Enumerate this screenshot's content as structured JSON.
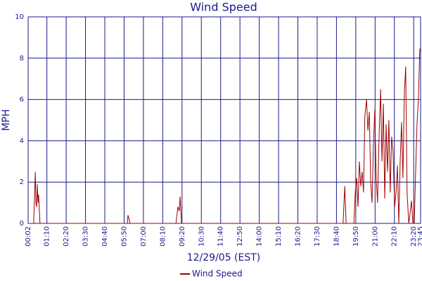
{
  "chart_data": {
    "type": "line",
    "title": "Wind Speed",
    "xlabel": "12/29/05 (EST)",
    "ylabel": "MPH",
    "xlim": [
      2,
      1425
    ],
    "ylim": [
      0,
      10
    ],
    "yticks": [
      0,
      2,
      4,
      6,
      8,
      10
    ],
    "xticks": [
      {
        "value": 2,
        "label": "00:02"
      },
      {
        "value": 70,
        "label": "01:10"
      },
      {
        "value": 140,
        "label": "02:20"
      },
      {
        "value": 210,
        "label": "03:30"
      },
      {
        "value": 280,
        "label": "04:40"
      },
      {
        "value": 350,
        "label": "05:50"
      },
      {
        "value": 420,
        "label": "07:00"
      },
      {
        "value": 490,
        "label": "08:10"
      },
      {
        "value": 560,
        "label": "09:20"
      },
      {
        "value": 630,
        "label": "10:30"
      },
      {
        "value": 700,
        "label": "11:40"
      },
      {
        "value": 770,
        "label": "12:50"
      },
      {
        "value": 840,
        "label": "14:00"
      },
      {
        "value": 910,
        "label": "15:10"
      },
      {
        "value": 980,
        "label": "16:20"
      },
      {
        "value": 1050,
        "label": "17:30"
      },
      {
        "value": 1120,
        "label": "18:40"
      },
      {
        "value": 1190,
        "label": "19:50"
      },
      {
        "value": 1260,
        "label": "21:00"
      },
      {
        "value": 1330,
        "label": "22:10"
      },
      {
        "value": 1400,
        "label": "23:20"
      },
      {
        "value": 1425,
        "label": "23:45"
      }
    ],
    "grid": true,
    "legend": "bottom",
    "x": [
      2,
      22,
      28,
      30,
      33,
      35,
      38,
      40,
      45,
      362,
      364,
      372,
      538,
      545,
      550,
      553,
      558,
      1144,
      1150,
      1155,
      1183,
      1188,
      1193,
      1198,
      1203,
      1208,
      1213,
      1218,
      1223,
      1229,
      1234,
      1239,
      1244,
      1249,
      1254,
      1259,
      1264,
      1269,
      1274,
      1280,
      1285,
      1290,
      1295,
      1300,
      1305,
      1310,
      1315,
      1320,
      1325,
      1331,
      1336,
      1341,
      1346,
      1351,
      1356,
      1361,
      1366,
      1371,
      1376,
      1382,
      1387,
      1392,
      1397,
      1402,
      1407,
      1412,
      1417,
      1422,
      1425
    ],
    "series": [
      {
        "name": "Wind Speed",
        "color": "#a00000",
        "values": [
          0,
          0,
          2.5,
          1.0,
          0.8,
          1.9,
          1.0,
          1.4,
          0,
          0,
          0.4,
          0,
          0,
          0.8,
          0.6,
          1.3,
          0,
          0,
          1.8,
          0,
          0,
          1.5,
          2.2,
          0.8,
          3.0,
          1.8,
          2.5,
          1.5,
          5.2,
          6.0,
          4.5,
          5.4,
          2.0,
          1.0,
          3.8,
          5.5,
          2.2,
          1.0,
          4.0,
          6.5,
          3.0,
          5.8,
          1.2,
          4.8,
          2.5,
          5.0,
          1.5,
          4.2,
          3.5,
          0.8,
          1.5,
          2.8,
          0,
          3.0,
          4.9,
          2.2,
          6.3,
          7.6,
          1.5,
          0,
          0.5,
          1.1,
          0,
          0,
          2.5,
          4.8,
          6.0,
          8.4,
          8.5
        ]
      }
    ]
  }
}
